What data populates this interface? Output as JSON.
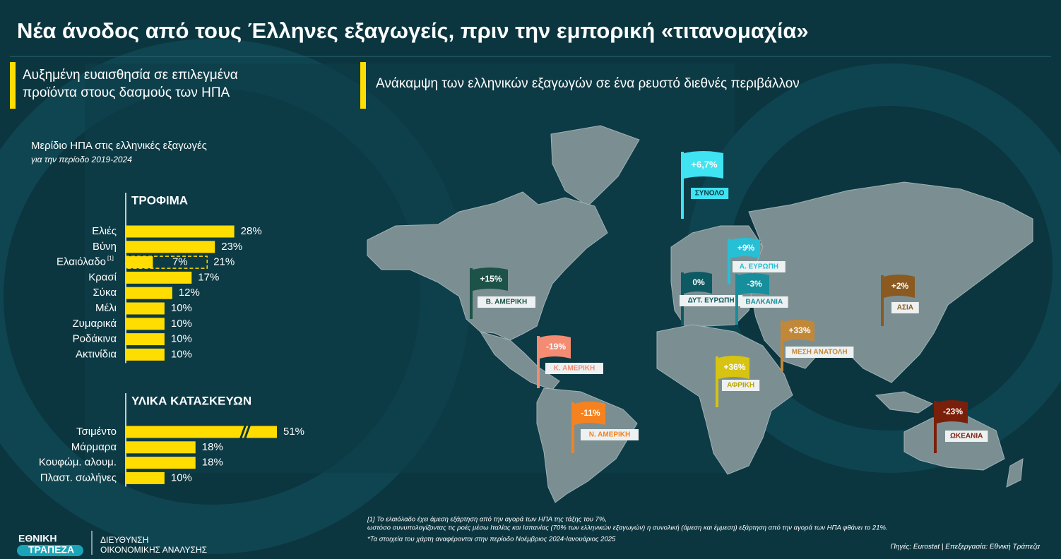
{
  "header": {
    "title": "Νέα άνοδος από τους Έλληνες εξαγωγείς, πριν την εμπορική «τιτανομαχία»"
  },
  "left_panel": {
    "heading": "Αυξημένη ευαισθησία σε επιλεγμένα προϊόντα στους δασμούς των ΗΠΑ",
    "chart_title": "Μερίδιο ΗΠΑ στις ελληνικές εξαγωγές",
    "chart_subtitle": "για την περίοδο 2019-2024",
    "footnote_marker": "[1]"
  },
  "chart_data": [
    {
      "type": "bar",
      "title": "ΤΡΟΦΙΜΑ",
      "color": "#ffdd00",
      "categories": [
        "Ελιές",
        "Βύνη",
        "Ελαιόλαδο",
        "Κρασί",
        "Σύκα",
        "Μέλι",
        "Ζυμαρικά",
        "Ροδάκινα",
        "Ακτινίδια"
      ],
      "values": [
        28,
        23,
        21,
        17,
        12,
        10,
        10,
        10,
        10
      ],
      "value_labels": [
        "28%",
        "23%",
        "21%",
        "17%",
        "12%",
        "10%",
        "10%",
        "10%",
        "10%"
      ],
      "direct_values": [
        null,
        null,
        7,
        null,
        null,
        null,
        null,
        null,
        null
      ],
      "direct_value_labels": [
        null,
        null,
        "7%",
        null,
        null,
        null,
        null,
        null,
        null
      ],
      "xlim": [
        0,
        39
      ]
    },
    {
      "type": "bar",
      "title": "ΥΛΙΚΑ ΚΑΤΑΣΚΕΥΩΝ",
      "color": "#ffdd00",
      "categories": [
        "Τσιμέντο",
        "Μάρμαρα",
        "Κουφώμ. αλουμ.",
        "Πλαστ. σωλήνες"
      ],
      "values": [
        51,
        18,
        18,
        10
      ],
      "value_labels": [
        "51%",
        "18%",
        "18%",
        "10%"
      ],
      "xlim": [
        0,
        39
      ]
    }
  ],
  "map": {
    "heading": "Ανάκαμψη των ελληνικών εξαγωγών σε ένα ρευστό διεθνές περιβάλλον",
    "regions": [
      {
        "name": "ΣΥΝΟΛΟ",
        "label": "+6,7%",
        "color": "#3fe3f2"
      },
      {
        "name": "Α. ΕΥΡΩΠΗ",
        "label": "+9%",
        "color": "#25bfd6"
      },
      {
        "name": "ΔΥΤ. ΕΥΡΩΠΗ",
        "label": "0%",
        "color": "#0e5a63"
      },
      {
        "name": "ΒΑΛΚΑΝΙΑ",
        "label": "-3%",
        "color": "#168e9b"
      },
      {
        "name": "Β. ΑΜΕΡΙΚΗ",
        "label": "+15%",
        "color": "#1c5247"
      },
      {
        "name": "ΑΣΙΑ",
        "label": "+2%",
        "color": "#8a5a20"
      },
      {
        "name": "ΜΕΣΗ ΑΝΑΤΟΛΗ",
        "label": "+33%",
        "color": "#c08838"
      },
      {
        "name": "Κ. ΑΜΕΡΙΚΗ",
        "label": "-19%",
        "color": "#f38c72"
      },
      {
        "name": "ΑΦΡΙΚΗ",
        "label": "+36%",
        "color": "#d6c312"
      },
      {
        "name": "Ν. ΑΜΕΡΙΚΗ",
        "label": "-11%",
        "color": "#f5821f"
      },
      {
        "name": "ΩΚΕΑΝΙΑ",
        "label": "-23%",
        "color": "#7a1f0a"
      }
    ]
  },
  "footer": {
    "note_1a": "[1] Το ελαιόλαδο έχει άμεση εξάρτηση από την αγορά των ΗΠΑ της τάξης του 7%,",
    "note_1b": "ωστόσο συνυπολογίζοντας τις ροές μέσω  Ιταλίας και Ισπανίας (70% των ελληνικών εξαγωγών) η συνολική (άμεση και έμμεση) εξάρτηση από την αγορά των ΗΠΑ φθάνει το 21%.",
    "note_2": "*Τα στοιχεία του χάρτη αναφέρονται στην περίοδο Νοέμβριος 2024-Ιανουάριος 2025",
    "logo_1": "ΕΘΝΙΚΗ",
    "logo_2": "ΤΡΑΠΕΖΑ",
    "dept_1": "ΔΙΕΥΘΥΝΣΗ",
    "dept_2": "ΟΙΚΟΝΟΜΙΚΗΣ ΑΝΑΛΥΣΗΣ",
    "source": "Πηγές: Eurostat | Επεξεργασία: Εθνική Τράπεζα"
  }
}
